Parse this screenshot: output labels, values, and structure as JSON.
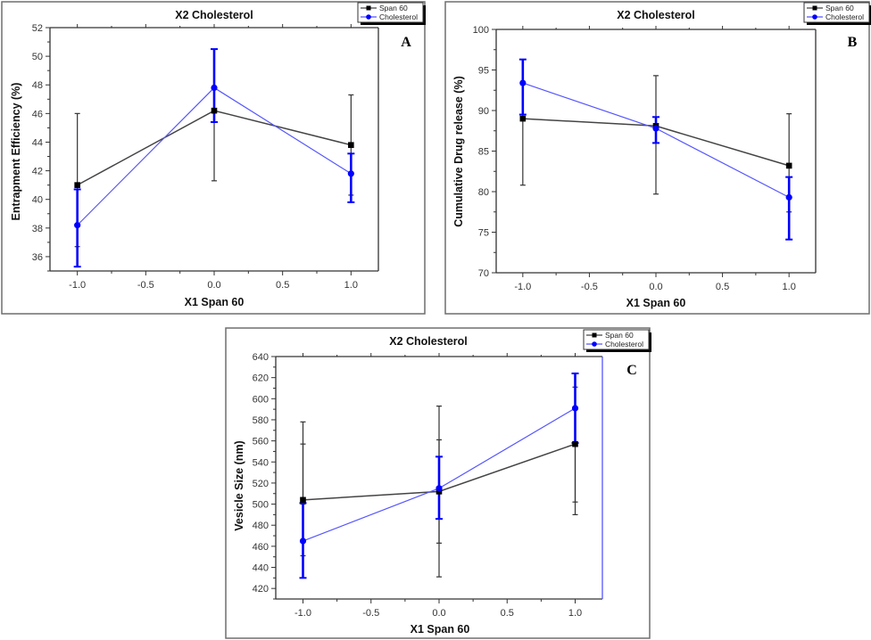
{
  "figure": {
    "description": "Three-panel figure of X1 Span 60 vs responses at X2 Cholesterol levels"
  },
  "chart_data": [
    {
      "panel": "A",
      "type": "line",
      "title": "X2 Cholesterol",
      "xlabel": "X1 Span 60",
      "ylabel": "Entrapment Efficiency (%)",
      "xlim": [
        -1.2,
        1.2
      ],
      "ylim": [
        35,
        52
      ],
      "xticks": [
        -1.0,
        -0.5,
        0.0,
        0.5,
        1.0
      ],
      "xtick_labels": [
        "-1.0",
        "-0.5",
        "0.0",
        "0.5",
        "1.0"
      ],
      "yticks": [
        36,
        38,
        40,
        42,
        44,
        46,
        48,
        50,
        52
      ],
      "ytick_labels": [
        "36",
        "38",
        "40",
        "42",
        "44",
        "46",
        "48",
        "50",
        "52"
      ],
      "legend": {
        "placement": "top-right",
        "entries": [
          "Span 60",
          "Cholesterol"
        ]
      },
      "x": [
        -1.0,
        0.0,
        1.0
      ],
      "series": [
        {
          "name": "Span 60",
          "color": "#000000",
          "line_color": "#444444",
          "marker": "square",
          "values": [
            41.0,
            46.2,
            43.8
          ],
          "error_low": [
            36.7,
            41.3,
            40.3
          ],
          "error_high": [
            46.0,
            50.5,
            47.3
          ]
        },
        {
          "name": "Cholesterol",
          "color": "#0000ff",
          "line_color": "#5555ff",
          "marker": "circle",
          "values": [
            38.2,
            47.8,
            41.8
          ],
          "error_low": [
            35.3,
            45.4,
            39.8
          ],
          "error_high": [
            40.7,
            50.5,
            43.2
          ]
        }
      ]
    },
    {
      "panel": "B",
      "type": "line",
      "title": "X2 Cholesterol",
      "xlabel": "X1 Span 60",
      "ylabel": "Cumulative Drug release (%)",
      "xlim": [
        -1.2,
        1.2
      ],
      "ylim": [
        70,
        100
      ],
      "xticks": [
        -1.0,
        -0.5,
        0.0,
        0.5,
        1.0
      ],
      "xtick_labels": [
        "-1.0",
        "-0.5",
        "0.0",
        "0.5",
        "1.0"
      ],
      "yticks": [
        70,
        75,
        80,
        85,
        90,
        95,
        100
      ],
      "ytick_labels": [
        "70",
        "75",
        "80",
        "85",
        "90",
        "95",
        "100"
      ],
      "legend": {
        "placement": "top-right",
        "entries": [
          "Span 60",
          "Cholesterol"
        ]
      },
      "x": [
        -1.0,
        0.0,
        1.0
      ],
      "series": [
        {
          "name": "Span 60",
          "color": "#000000",
          "line_color": "#444444",
          "marker": "square",
          "values": [
            89.0,
            88.1,
            83.2
          ],
          "error_low": [
            80.8,
            79.7,
            77.5
          ],
          "error_high": [
            96.3,
            94.3,
            89.6
          ]
        },
        {
          "name": "Cholesterol",
          "color": "#0000ff",
          "line_color": "#5555ff",
          "marker": "circle",
          "values": [
            93.4,
            87.8,
            79.3
          ],
          "error_low": [
            89.5,
            86.0,
            74.1
          ],
          "error_high": [
            96.3,
            89.2,
            81.8
          ]
        }
      ]
    },
    {
      "panel": "C",
      "type": "line",
      "title": "X2 Cholesterol",
      "xlabel": "X1 Span 60",
      "ylabel": "Vesicle Size (nm)",
      "xlim": [
        -1.2,
        1.2
      ],
      "ylim": [
        410,
        640
      ],
      "xticks": [
        -1.0,
        -0.5,
        0.0,
        0.5,
        1.0
      ],
      "xtick_labels": [
        "-1.0",
        "-0.5",
        "0.0",
        "0.5",
        "1.0"
      ],
      "yticks": [
        420,
        440,
        460,
        480,
        500,
        520,
        540,
        560,
        580,
        600,
        620,
        640
      ],
      "ytick_labels": [
        "420",
        "440",
        "460",
        "480",
        "500",
        "520",
        "540",
        "560",
        "580",
        "600",
        "620",
        "640"
      ],
      "legend": {
        "placement": "top-right",
        "entries": [
          "Span 60",
          "Cholesterol"
        ]
      },
      "x": [
        -1.0,
        0.0,
        1.0
      ],
      "series": [
        {
          "name": "Span 60",
          "color": "#000000",
          "line_color": "#444444",
          "marker": "square",
          "values": [
            504,
            512,
            557
          ],
          "error_low": [
            451,
            431,
            490
          ],
          "error_high": [
            578,
            593,
            611
          ],
          "inner_error_low": [
            500,
            463,
            502
          ],
          "inner_error_high": [
            557,
            561,
            558
          ]
        },
        {
          "name": "Cholesterol",
          "color": "#0000ff",
          "line_color": "#5555ff",
          "marker": "circle",
          "values": [
            465,
            515,
            591
          ],
          "error_low": [
            430,
            486,
            558
          ],
          "error_high": [
            501,
            545,
            624
          ]
        }
      ]
    }
  ],
  "panels": [
    {
      "letter": "A"
    },
    {
      "letter": "B"
    },
    {
      "letter": "C"
    }
  ]
}
